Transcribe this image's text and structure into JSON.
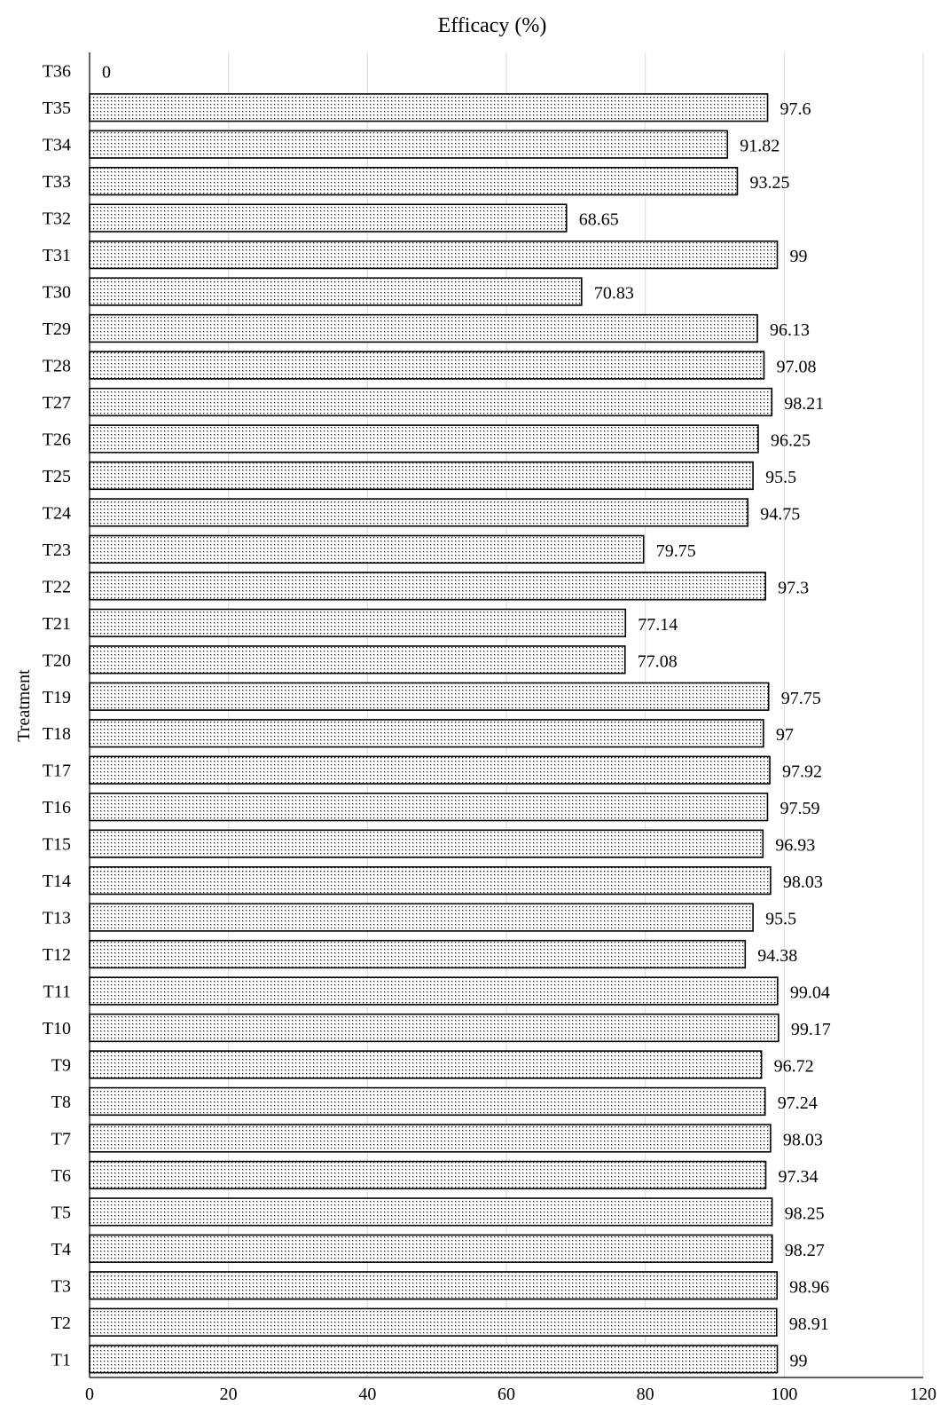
{
  "chart_data": {
    "type": "bar",
    "orientation": "horizontal",
    "title": "Efficacy (%)",
    "xlabel": "",
    "ylabel": "Treatment",
    "xlim": [
      0,
      120
    ],
    "x_ticks": [
      "0",
      "20",
      "40",
      "60",
      "80",
      "100",
      "120"
    ],
    "grid": "vertical",
    "bar_fill": "dotted",
    "categories": [
      "T1",
      "T2",
      "T3",
      "T4",
      "T5",
      "T6",
      "T7",
      "T8",
      "T9",
      "T10",
      "T11",
      "T12",
      "T13",
      "T14",
      "T15",
      "T16",
      "T17",
      "T18",
      "T19",
      "T20",
      "T21",
      "T22",
      "T23",
      "T24",
      "T25",
      "T26",
      "T27",
      "T28",
      "T29",
      "T30",
      "T31",
      "T32",
      "T33",
      "T34",
      "T35",
      "T36"
    ],
    "values": [
      99,
      98.91,
      98.96,
      98.27,
      98.25,
      97.34,
      98.03,
      97.24,
      96.72,
      99.17,
      99.04,
      94.38,
      95.5,
      98.03,
      96.93,
      97.59,
      97.92,
      97,
      97.75,
      77.08,
      77.14,
      97.3,
      79.75,
      94.75,
      95.5,
      96.25,
      98.21,
      97.08,
      96.13,
      70.83,
      99,
      68.65,
      93.25,
      91.82,
      97.6,
      0
    ],
    "data_labels": [
      "99",
      "98.91",
      "98.96",
      "98.27",
      "98.25",
      "97.34",
      "98.03",
      "97.24",
      "96.72",
      "99.17",
      "99.04",
      "94.38",
      "95.5",
      "98.03",
      "96.93",
      "97.59",
      "97.92",
      "97",
      "97.75",
      "77.08",
      "77.14",
      "97.3",
      "79.75",
      "94.75",
      "95.5",
      "96.25",
      "98.21",
      "97.08",
      "96.13",
      "70.83",
      "99",
      "68.65",
      "93.25",
      "91.82",
      "97.6",
      "0"
    ]
  }
}
